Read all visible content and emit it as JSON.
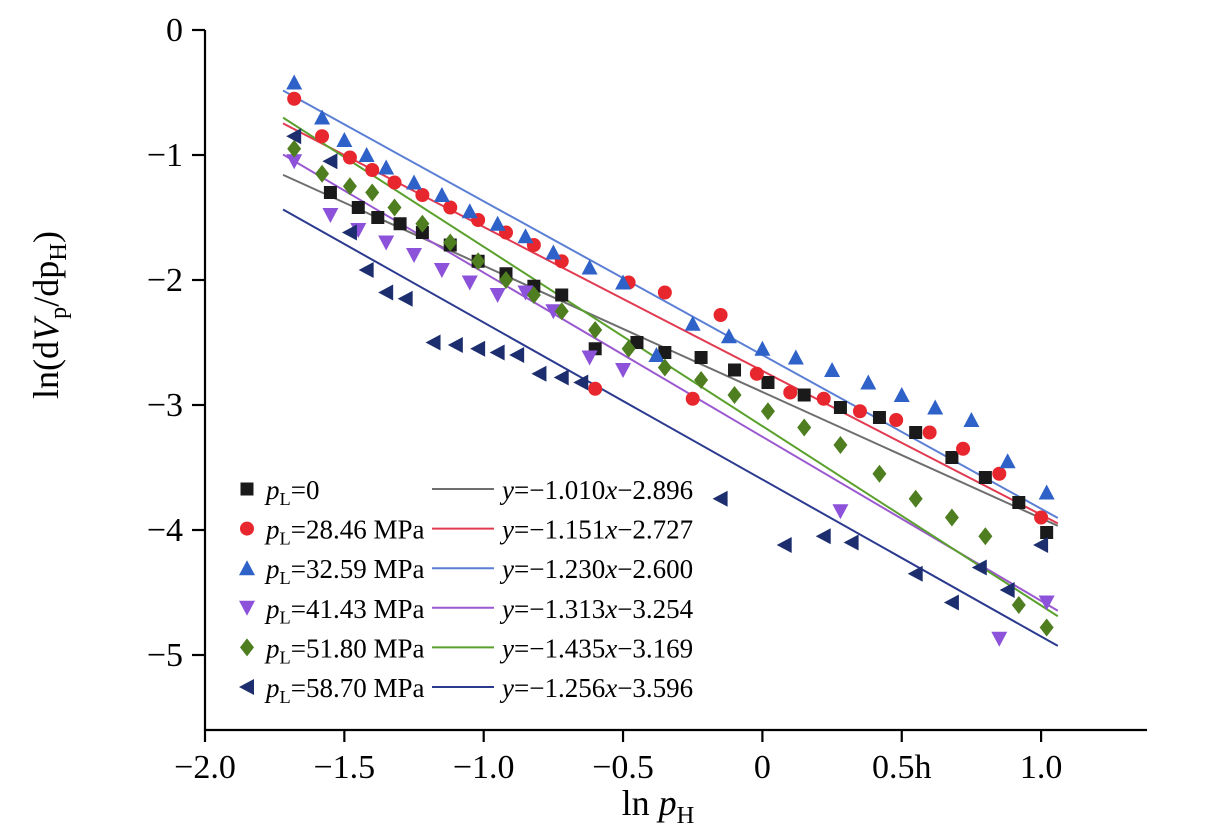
{
  "chart_data": {
    "type": "scatter",
    "title": "",
    "xlabel_parts": [
      {
        "t": "ln "
      },
      {
        "t": "p",
        "i": true
      },
      {
        "t": "H",
        "sub": true
      }
    ],
    "ylabel_parts": [
      {
        "t": "ln(d"
      },
      {
        "t": "V",
        "i": true
      },
      {
        "t": "p",
        "sub": true
      },
      {
        "t": "/dp"
      },
      {
        "t": "H",
        "sub": true
      },
      {
        "t": ")"
      }
    ],
    "xlim": [
      -2.0,
      1.38
    ],
    "ylim": [
      -5.6,
      0
    ],
    "grid": false,
    "legend_position": "lower-left-inside",
    "x_ticks": [
      {
        "v": -2.0,
        "label": "−2.0"
      },
      {
        "v": -1.5,
        "label": "−1.5"
      },
      {
        "v": -1.0,
        "label": "−1.0"
      },
      {
        "v": -0.5,
        "label": "−0.5"
      },
      {
        "v": 0.0,
        "label": "0"
      },
      {
        "v": 0.5,
        "label": "0.5h"
      },
      {
        "v": 1.0,
        "label": "1.0"
      }
    ],
    "y_ticks": [
      {
        "v": 0,
        "label": "0"
      },
      {
        "v": -1,
        "label": "−1"
      },
      {
        "v": -2,
        "label": "−2"
      },
      {
        "v": -3,
        "label": "−3"
      },
      {
        "v": -4,
        "label": "−4"
      },
      {
        "v": -5,
        "label": "−5"
      }
    ],
    "fit_line_x_range": [
      -1.72,
      1.06
    ],
    "series": [
      {
        "name": "pL=0",
        "label_parts": [
          {
            "t": "p",
            "i": true
          },
          {
            "t": "L",
            "sub": true
          },
          {
            "t": "=0"
          }
        ],
        "marker": "square",
        "color": "#1a1a1a",
        "line_color": "#6e6e6e",
        "fit": {
          "slope": -1.01,
          "intercept": -2.896
        },
        "equation_parts": [
          {
            "t": "y",
            "i": true
          },
          {
            "t": "=−1.010"
          },
          {
            "t": "x",
            "i": true
          },
          {
            "t": "−2.896"
          }
        ],
        "points": [
          [
            -1.55,
            -1.3
          ],
          [
            -1.45,
            -1.42
          ],
          [
            -1.38,
            -1.5
          ],
          [
            -1.3,
            -1.55
          ],
          [
            -1.22,
            -1.62
          ],
          [
            -1.12,
            -1.72
          ],
          [
            -1.02,
            -1.85
          ],
          [
            -0.92,
            -1.95
          ],
          [
            -0.82,
            -2.05
          ],
          [
            -0.72,
            -2.12
          ],
          [
            -0.6,
            -2.55
          ],
          [
            -0.45,
            -2.5
          ],
          [
            -0.35,
            -2.58
          ],
          [
            -0.22,
            -2.62
          ],
          [
            -0.1,
            -2.72
          ],
          [
            0.02,
            -2.82
          ],
          [
            0.15,
            -2.92
          ],
          [
            0.28,
            -3.02
          ],
          [
            0.42,
            -3.1
          ],
          [
            0.55,
            -3.22
          ],
          [
            0.68,
            -3.42
          ],
          [
            0.8,
            -3.58
          ],
          [
            0.92,
            -3.78
          ],
          [
            1.02,
            -4.02
          ]
        ]
      },
      {
        "name": "pL=28.46 MPa",
        "label_parts": [
          {
            "t": "p",
            "i": true
          },
          {
            "t": "L",
            "sub": true
          },
          {
            "t": "=28.46 MPa"
          }
        ],
        "marker": "circle",
        "color": "#e8262d",
        "line_color": "#e23b51",
        "fit": {
          "slope": -1.151,
          "intercept": -2.727
        },
        "equation_parts": [
          {
            "t": "y",
            "i": true
          },
          {
            "t": "=−1.151"
          },
          {
            "t": "x",
            "i": true
          },
          {
            "t": "−2.727"
          }
        ],
        "points": [
          [
            -1.68,
            -0.55
          ],
          [
            -1.58,
            -0.85
          ],
          [
            -1.48,
            -1.02
          ],
          [
            -1.4,
            -1.12
          ],
          [
            -1.32,
            -1.22
          ],
          [
            -1.22,
            -1.32
          ],
          [
            -1.12,
            -1.42
          ],
          [
            -1.02,
            -1.52
          ],
          [
            -0.92,
            -1.62
          ],
          [
            -0.82,
            -1.72
          ],
          [
            -0.72,
            -1.85
          ],
          [
            -0.6,
            -2.87
          ],
          [
            -0.48,
            -2.02
          ],
          [
            -0.35,
            -2.1
          ],
          [
            -0.25,
            -2.95
          ],
          [
            -0.15,
            -2.28
          ],
          [
            -0.02,
            -2.75
          ],
          [
            0.1,
            -2.9
          ],
          [
            0.22,
            -2.95
          ],
          [
            0.35,
            -3.05
          ],
          [
            0.48,
            -3.12
          ],
          [
            0.6,
            -3.22
          ],
          [
            0.72,
            -3.35
          ],
          [
            0.85,
            -3.55
          ],
          [
            1.0,
            -3.9
          ]
        ]
      },
      {
        "name": "pL=32.59 MPa",
        "label_parts": [
          {
            "t": "p",
            "i": true
          },
          {
            "t": "L",
            "sub": true
          },
          {
            "t": "=32.59 MPa"
          }
        ],
        "marker": "triangle-up",
        "color": "#2e62c9",
        "line_color": "#5b7fd4",
        "fit": {
          "slope": -1.23,
          "intercept": -2.6
        },
        "equation_parts": [
          {
            "t": "y",
            "i": true
          },
          {
            "t": "=−1.230"
          },
          {
            "t": "x",
            "i": true
          },
          {
            "t": "−2.600"
          }
        ],
        "points": [
          [
            -1.68,
            -0.42
          ],
          [
            -1.58,
            -0.7
          ],
          [
            -1.5,
            -0.88
          ],
          [
            -1.42,
            -1.0
          ],
          [
            -1.35,
            -1.1
          ],
          [
            -1.25,
            -1.22
          ],
          [
            -1.15,
            -1.32
          ],
          [
            -1.05,
            -1.45
          ],
          [
            -0.95,
            -1.55
          ],
          [
            -0.85,
            -1.65
          ],
          [
            -0.75,
            -1.78
          ],
          [
            -0.62,
            -1.9
          ],
          [
            -0.5,
            -2.02
          ],
          [
            -0.38,
            -2.6
          ],
          [
            -0.25,
            -2.35
          ],
          [
            -0.12,
            -2.45
          ],
          [
            0.0,
            -2.55
          ],
          [
            0.12,
            -2.62
          ],
          [
            0.25,
            -2.72
          ],
          [
            0.38,
            -2.82
          ],
          [
            0.5,
            -2.92
          ],
          [
            0.62,
            -3.02
          ],
          [
            0.75,
            -3.12
          ],
          [
            0.88,
            -3.45
          ],
          [
            1.02,
            -3.7
          ]
        ]
      },
      {
        "name": "pL=41.43 MPa",
        "label_parts": [
          {
            "t": "p",
            "i": true
          },
          {
            "t": "L",
            "sub": true
          },
          {
            "t": "=41.43 MPa"
          }
        ],
        "marker": "triangle-down",
        "color": "#8c52d9",
        "line_color": "#9b59d0",
        "fit": {
          "slope": -1.313,
          "intercept": -3.254
        },
        "equation_parts": [
          {
            "t": "y",
            "i": true
          },
          {
            "t": "=−1.313"
          },
          {
            "t": "x",
            "i": true
          },
          {
            "t": "−3.254"
          }
        ],
        "points": [
          [
            -1.68,
            -1.05
          ],
          [
            -1.55,
            -1.48
          ],
          [
            -1.45,
            -1.6
          ],
          [
            -1.35,
            -1.7
          ],
          [
            -1.25,
            -1.8
          ],
          [
            -1.15,
            -1.92
          ],
          [
            -1.05,
            -2.02
          ],
          [
            -0.95,
            -2.12
          ],
          [
            -0.85,
            -2.1
          ],
          [
            -0.75,
            -2.25
          ],
          [
            -0.62,
            -2.62
          ],
          [
            -0.5,
            -2.72
          ],
          [
            0.28,
            -3.85
          ],
          [
            0.85,
            -4.87
          ],
          [
            1.02,
            -4.58
          ]
        ]
      },
      {
        "name": "pL=51.80 MPa",
        "label_parts": [
          {
            "t": "p",
            "i": true
          },
          {
            "t": "L",
            "sub": true
          },
          {
            "t": "=51.80 MPa"
          }
        ],
        "marker": "diamond",
        "color": "#4e7e20",
        "line_color": "#5aa02c",
        "fit": {
          "slope": -1.435,
          "intercept": -3.169
        },
        "equation_parts": [
          {
            "t": "y",
            "i": true
          },
          {
            "t": "=−1.435"
          },
          {
            "t": "x",
            "i": true
          },
          {
            "t": "−3.169"
          }
        ],
        "points": [
          [
            -1.68,
            -0.95
          ],
          [
            -1.58,
            -1.15
          ],
          [
            -1.48,
            -1.25
          ],
          [
            -1.4,
            -1.3
          ],
          [
            -1.32,
            -1.42
          ],
          [
            -1.22,
            -1.55
          ],
          [
            -1.12,
            -1.7
          ],
          [
            -1.02,
            -1.85
          ],
          [
            -0.92,
            -2.0
          ],
          [
            -0.82,
            -2.12
          ],
          [
            -0.72,
            -2.25
          ],
          [
            -0.6,
            -2.4
          ],
          [
            -0.48,
            -2.55
          ],
          [
            -0.35,
            -2.7
          ],
          [
            -0.22,
            -2.8
          ],
          [
            -0.1,
            -2.92
          ],
          [
            0.02,
            -3.05
          ],
          [
            0.15,
            -3.18
          ],
          [
            0.28,
            -3.32
          ],
          [
            0.42,
            -3.55
          ],
          [
            0.55,
            -3.75
          ],
          [
            0.68,
            -3.9
          ],
          [
            0.8,
            -4.05
          ],
          [
            0.92,
            -4.6
          ],
          [
            1.02,
            -4.78
          ]
        ]
      },
      {
        "name": "pL=58.70 MPa",
        "label_parts": [
          {
            "t": "p",
            "i": true
          },
          {
            "t": "L",
            "sub": true
          },
          {
            "t": "=58.70 MPa"
          }
        ],
        "marker": "triangle-left",
        "color": "#1c2e6e",
        "line_color": "#2b3a8f",
        "fit": {
          "slope": -1.256,
          "intercept": -3.596
        },
        "equation_parts": [
          {
            "t": "y",
            "i": true
          },
          {
            "t": "=−1.256"
          },
          {
            "t": "x",
            "i": true
          },
          {
            "t": "−3.596"
          }
        ],
        "points": [
          [
            -1.68,
            -0.85
          ],
          [
            -1.55,
            -1.05
          ],
          [
            -1.48,
            -1.62
          ],
          [
            -1.42,
            -1.92
          ],
          [
            -1.35,
            -2.1
          ],
          [
            -1.28,
            -2.15
          ],
          [
            -1.18,
            -2.5
          ],
          [
            -1.1,
            -2.52
          ],
          [
            -1.02,
            -2.55
          ],
          [
            -0.95,
            -2.58
          ],
          [
            -0.88,
            -2.6
          ],
          [
            -0.8,
            -2.75
          ],
          [
            -0.72,
            -2.78
          ],
          [
            -0.65,
            -2.82
          ],
          [
            -0.15,
            -3.75
          ],
          [
            0.08,
            -4.12
          ],
          [
            0.22,
            -4.05
          ],
          [
            0.32,
            -4.1
          ],
          [
            0.55,
            -4.35
          ],
          [
            0.68,
            -4.58
          ],
          [
            0.78,
            -4.3
          ],
          [
            0.88,
            -4.48
          ],
          [
            1.0,
            -4.12
          ]
        ]
      }
    ]
  }
}
